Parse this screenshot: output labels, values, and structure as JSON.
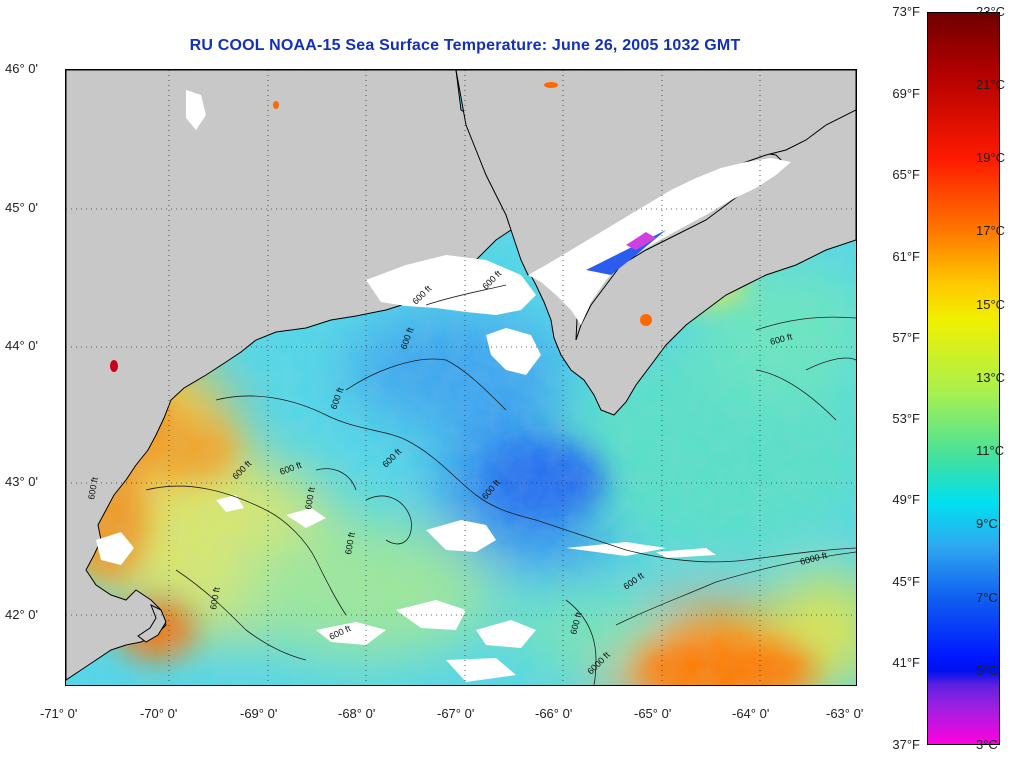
{
  "title": "RU COOL  NOAA-15  Sea Surface Temperature:  June 26, 2005 1032 GMT",
  "latitude_labels": [
    "46° 0'",
    "45° 0'",
    "44° 0'",
    "43° 0'",
    "42° 0'"
  ],
  "longitude_labels": [
    "-71° 0'",
    "-70° 0'",
    "-69° 0'",
    "-68° 0'",
    "-67° 0'",
    "-66° 0'",
    "-65° 0'",
    "-64° 0'",
    "-63° 0'"
  ],
  "colorbar": {
    "fahrenheit_labels": [
      "73°F",
      "69°F",
      "65°F",
      "61°F",
      "57°F",
      "53°F",
      "49°F",
      "45°F",
      "41°F",
      "37°F"
    ],
    "celsius_labels": [
      "23°C",
      "21°C",
      "19°C",
      "17°C",
      "15°C",
      "13°C",
      "11°C",
      "9°C",
      "7°C",
      "5°C",
      "3°C"
    ]
  },
  "contour_labels": [
    "600 ft",
    "600 ft",
    "600 ft",
    "600 ft",
    "600 ft",
    "600 ft",
    "600 ft",
    "600 ft",
    "600 ft",
    "600 ft",
    "600 ft",
    "600 ft",
    "600 ft",
    "600 ft",
    "600 ft",
    "600 ft",
    "6000 ft",
    "6000 ft"
  ],
  "colors": {
    "land": "#c8c8c8",
    "cloud": "#ffffff",
    "title": "#1230b8"
  }
}
